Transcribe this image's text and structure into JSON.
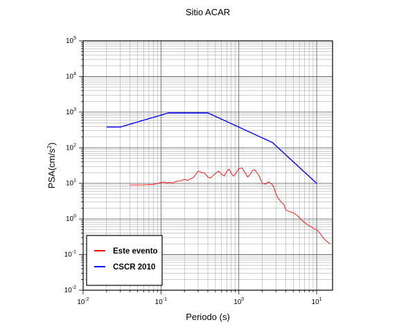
{
  "chart_data": {
    "type": "line",
    "title": "Sitio ACAR",
    "xlabel": "Periodo (s)",
    "ylabel": "PSA(cm/s",
    "ylabel_sup": "2",
    "ylabel_close": ")",
    "x_scale": "log",
    "y_scale": "log",
    "xlim": [
      0.01,
      16
    ],
    "ylim": [
      0.01,
      100000
    ],
    "x_ticks": [
      {
        "value": 0.01,
        "base": "10",
        "exp": "-2"
      },
      {
        "value": 0.1,
        "base": "10",
        "exp": "-1"
      },
      {
        "value": 1,
        "base": "10",
        "exp": "0"
      },
      {
        "value": 10,
        "base": "10",
        "exp": "1"
      }
    ],
    "y_ticks": [
      {
        "value": 0.01,
        "base": "10",
        "exp": "-2"
      },
      {
        "value": 0.1,
        "base": "10",
        "exp": "-1"
      },
      {
        "value": 1,
        "base": "10",
        "exp": "0"
      },
      {
        "value": 10,
        "base": "10",
        "exp": "1"
      },
      {
        "value": 100,
        "base": "10",
        "exp": "2"
      },
      {
        "value": 1000,
        "base": "10",
        "exp": "3"
      },
      {
        "value": 10000,
        "base": "10",
        "exp": "4"
      },
      {
        "value": 100000,
        "base": "10",
        "exp": "5"
      }
    ],
    "grid": true,
    "legend_position": "bottom-left",
    "series": [
      {
        "name": "Este evento",
        "color": "#ff0000",
        "x": [
          0.04,
          0.05,
          0.06,
          0.07,
          0.08,
          0.09,
          0.1,
          0.11,
          0.12,
          0.13,
          0.14,
          0.15,
          0.16,
          0.18,
          0.2,
          0.22,
          0.24,
          0.26,
          0.28,
          0.3,
          0.32,
          0.34,
          0.36,
          0.38,
          0.4,
          0.43,
          0.46,
          0.5,
          0.55,
          0.6,
          0.65,
          0.7,
          0.75,
          0.8,
          0.85,
          0.9,
          0.95,
          1.0,
          1.1,
          1.2,
          1.3,
          1.4,
          1.5,
          1.6,
          1.7,
          1.8,
          1.9,
          2.0,
          2.2,
          2.4,
          2.6,
          2.8,
          3.0,
          3.2,
          3.5,
          3.8,
          4.0,
          4.5,
          5.0,
          5.5,
          6.0,
          6.5,
          7.0,
          7.5,
          8.0,
          8.5,
          9.0,
          10.0,
          11.0,
          12.0,
          13.0,
          14.0,
          15.0
        ],
        "values": [
          9,
          9,
          9,
          9.2,
          9.3,
          10,
          10.5,
          11,
          10.2,
          10.8,
          10,
          11,
          11.5,
          11.8,
          13,
          12,
          13.5,
          14.5,
          18,
          22,
          21,
          19.5,
          20,
          17,
          15,
          14,
          16,
          19,
          22,
          18,
          16,
          22,
          25,
          19,
          16,
          18,
          22,
          26,
          27,
          20,
          15,
          18,
          23,
          24,
          20,
          17,
          13,
          10,
          9.5,
          11,
          10,
          8,
          5,
          3.8,
          3,
          2.5,
          1.8,
          1.6,
          1.5,
          1.3,
          1.1,
          0.9,
          0.8,
          0.7,
          0.65,
          0.6,
          0.55,
          0.5,
          0.4,
          0.3,
          0.25,
          0.22,
          0.2
        ]
      },
      {
        "name": "CSCR 2010",
        "color": "#0000ff",
        "x": [
          0.02,
          0.03,
          0.125,
          0.4,
          2.7,
          10
        ],
        "values": [
          380,
          380,
          950,
          950,
          140,
          10
        ]
      }
    ]
  }
}
